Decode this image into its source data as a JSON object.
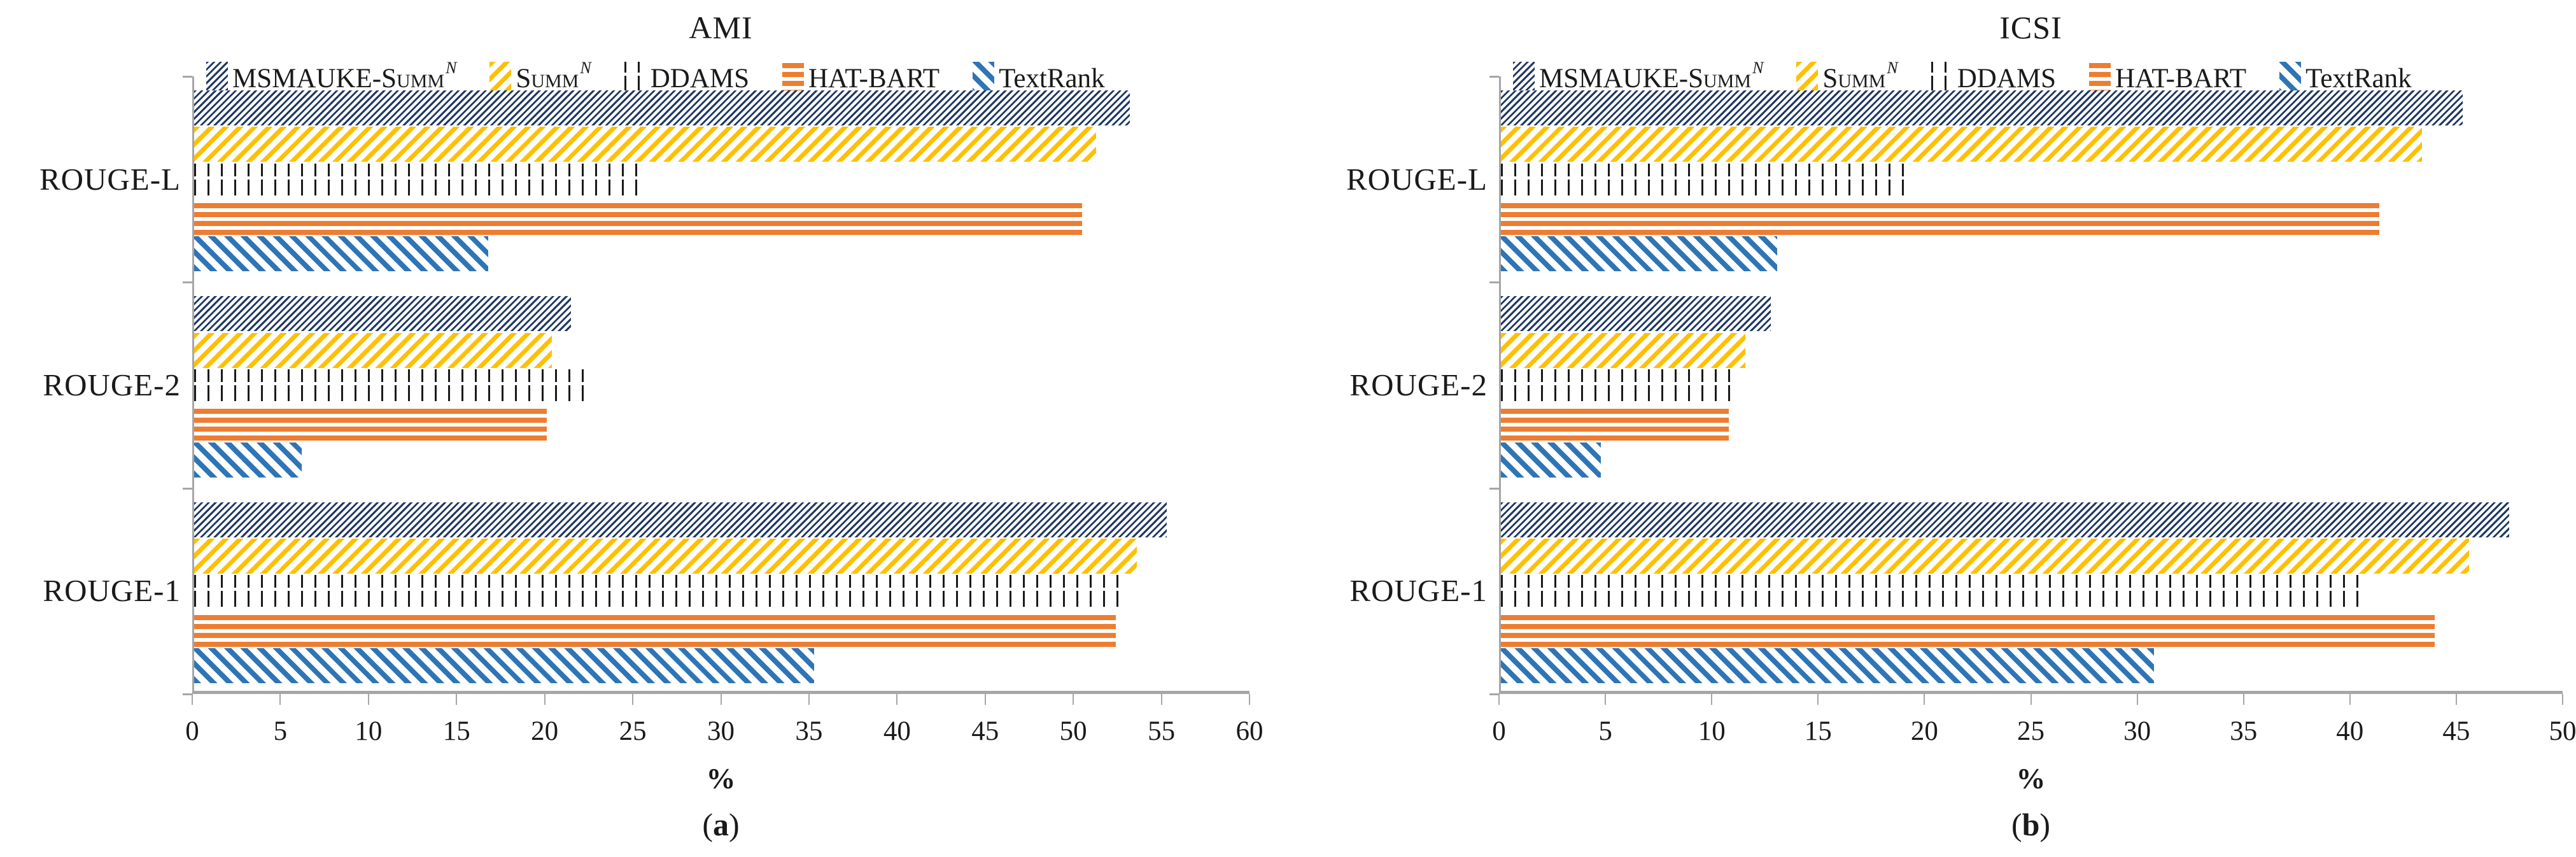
{
  "figure": {
    "background": "#ffffff",
    "axis_color": "#a6a6a6",
    "text_color": "#1a1a1a"
  },
  "chart_data": [
    {
      "type": "bar",
      "orientation": "horizontal",
      "title": "AMI",
      "caption": {
        "open": "(",
        "letter": "a",
        "close": ")"
      },
      "xlabel": "%",
      "xlim": [
        0,
        60
      ],
      "xticks": [
        0,
        5,
        10,
        15,
        20,
        25,
        30,
        35,
        40,
        45,
        50,
        55,
        60
      ],
      "grid": false,
      "legend_position": "top",
      "categories": [
        "ROUGE-L",
        "ROUGE-2",
        "ROUGE-1"
      ],
      "series": [
        {
          "name": "MSMAUKE-SummN",
          "label": {
            "main": "MSMAUKE-S",
            "caps": "umm",
            "sup": "N"
          },
          "pattern": "navy-diagonal-hatch",
          "color": "#1f3864",
          "values": [
            53.1,
            21.4,
            55.2
          ]
        },
        {
          "name": "SummN",
          "label": {
            "main": "S",
            "caps": "umm",
            "sup": "N"
          },
          "pattern": "yellow-diagonal-hatch",
          "color": "#ffc000",
          "values": [
            51.2,
            20.3,
            53.5
          ]
        },
        {
          "name": "DDAMS",
          "label": {
            "main": "DDAMS",
            "caps": "",
            "sup": ""
          },
          "pattern": "black-dotted",
          "color": "#1a1a1a",
          "values": [
            25.7,
            22.1,
            53.0
          ]
        },
        {
          "name": "HAT-BART",
          "label": {
            "main": "HAT-BART",
            "caps": "",
            "sup": ""
          },
          "pattern": "orange-horizontal-lines",
          "color": "#ed7d31",
          "values": [
            50.4,
            20.0,
            52.3
          ]
        },
        {
          "name": "TextRank",
          "label": {
            "main": "TextRank",
            "caps": "",
            "sup": ""
          },
          "pattern": "blue-diagonal-hatch",
          "color": "#2e75b6",
          "values": [
            16.7,
            6.1,
            35.2
          ]
        }
      ]
    },
    {
      "type": "bar",
      "orientation": "horizontal",
      "title": "ICSI",
      "caption": {
        "open": "(",
        "letter": "b",
        "close": ")"
      },
      "xlabel": "%",
      "xlim": [
        0,
        50
      ],
      "xticks": [
        0,
        5,
        10,
        15,
        20,
        25,
        30,
        35,
        40,
        45,
        50
      ],
      "grid": false,
      "legend_position": "top",
      "categories": [
        "ROUGE-L",
        "ROUGE-2",
        "ROUGE-1"
      ],
      "series": [
        {
          "name": "MSMAUKE-SummN",
          "label": {
            "main": "MSMAUKE-S",
            "caps": "umm",
            "sup": "N"
          },
          "pattern": "navy-diagonal-hatch",
          "color": "#1f3864",
          "values": [
            45.2,
            12.7,
            47.4
          ]
        },
        {
          "name": "SummN",
          "label": {
            "main": "S",
            "caps": "umm",
            "sup": "N"
          },
          "pattern": "yellow-diagonal-hatch",
          "color": "#ffc000",
          "values": [
            43.3,
            11.5,
            45.5
          ]
        },
        {
          "name": "DDAMS",
          "label": {
            "main": "DDAMS",
            "caps": "",
            "sup": ""
          },
          "pattern": "black-dotted",
          "color": "#1a1a1a",
          "values": [
            19.1,
            10.8,
            40.4
          ]
        },
        {
          "name": "HAT-BART",
          "label": {
            "main": "HAT-BART",
            "caps": "",
            "sup": ""
          },
          "pattern": "orange-horizontal-lines",
          "color": "#ed7d31",
          "values": [
            41.3,
            10.7,
            43.9
          ]
        },
        {
          "name": "TextRank",
          "label": {
            "main": "TextRank",
            "caps": "",
            "sup": ""
          },
          "pattern": "blue-diagonal-hatch",
          "color": "#2e75b6",
          "values": [
            13.0,
            4.7,
            30.7
          ]
        }
      ]
    }
  ]
}
